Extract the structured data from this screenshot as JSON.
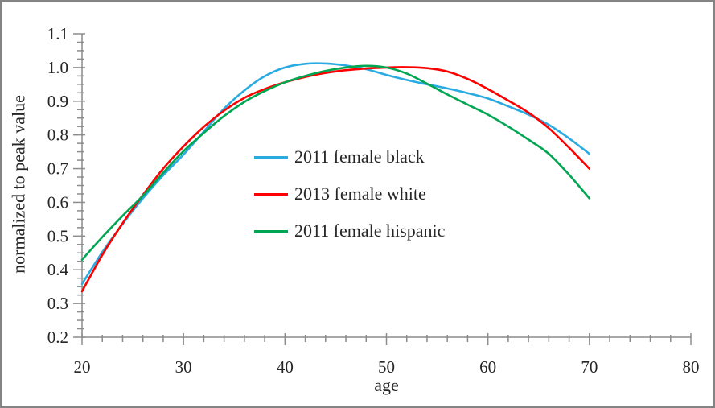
{
  "window": {
    "background": "#ffffff",
    "frame_border_color": "#848484"
  },
  "chart_data": {
    "type": "line",
    "title": "",
    "xlabel": "age",
    "ylabel": "normalized to peak value",
    "xlim": [
      20,
      80
    ],
    "ylim": [
      0.2,
      1.1
    ],
    "x_major_ticks": [
      20,
      30,
      40,
      50,
      60,
      70,
      80
    ],
    "x_minor_step": 2,
    "y_tick_labels": [
      "0.2",
      "0.3",
      "0.4",
      "0.5",
      "0.6",
      "0.7",
      "0.8",
      "0.9",
      "1.0",
      "1.1"
    ],
    "y_major_step": 0.1,
    "y_minor_step": 0.025,
    "grid": false,
    "legend_position": "inside-center-left",
    "axis_color": "#8c8c8c",
    "text_color": "#262626",
    "ages": [
      20,
      22,
      24,
      26,
      28,
      30,
      32,
      34,
      36,
      38,
      40,
      42,
      44,
      46,
      48,
      50,
      52,
      54,
      56,
      58,
      60,
      62,
      64,
      66,
      68,
      70
    ],
    "series": [
      {
        "name": "2011 female black",
        "color": "#29ABE2",
        "values": [
          0.358,
          0.452,
          0.536,
          0.612,
          0.68,
          0.742,
          0.81,
          0.878,
          0.932,
          0.974,
          1.0,
          1.011,
          1.012,
          1.006,
          0.995,
          0.978,
          0.963,
          0.95,
          0.938,
          0.924,
          0.908,
          0.885,
          0.86,
          0.83,
          0.79,
          0.744
        ]
      },
      {
        "name": "2013 female white",
        "color": "#FE0000",
        "values": [
          0.336,
          0.444,
          0.538,
          0.622,
          0.7,
          0.766,
          0.824,
          0.872,
          0.91,
          0.936,
          0.956,
          0.972,
          0.984,
          0.992,
          0.997,
          1.0,
          1.001,
          0.998,
          0.988,
          0.966,
          0.936,
          0.902,
          0.866,
          0.82,
          0.762,
          0.7
        ]
      },
      {
        "name": "2011 female hispanic",
        "color": "#00A651",
        "values": [
          0.43,
          0.497,
          0.56,
          0.62,
          0.688,
          0.752,
          0.806,
          0.856,
          0.898,
          0.93,
          0.956,
          0.975,
          0.99,
          1.0,
          1.005,
          1.0,
          0.982,
          0.952,
          0.92,
          0.89,
          0.86,
          0.825,
          0.786,
          0.744,
          0.682,
          0.612
        ]
      }
    ]
  }
}
